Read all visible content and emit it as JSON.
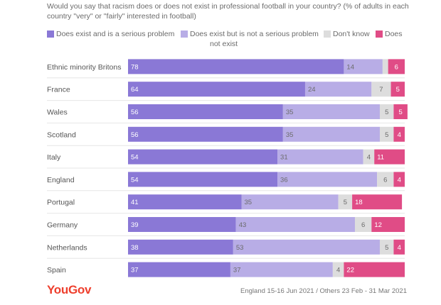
{
  "title": "Would you say that racism does or does not exist in professional football in your country? (% of adults in each country \"very\" or \"fairly\" interested in football)",
  "legend": [
    {
      "label": "Does exist and is a serious problem",
      "color": "#8a78d6"
    },
    {
      "label": "Does exist but is not a serious problem",
      "color": "#b8ade6"
    },
    {
      "label": "Don't know",
      "color": "#dddddd"
    },
    {
      "label": "Does",
      "label2": "not exist",
      "color": "#e04c86"
    }
  ],
  "footer": {
    "logo": "YouGov",
    "source": "England 15-16 Jun 2021 / Others 23 Feb - 31 Mar 2021"
  },
  "chart_data": {
    "type": "bar",
    "orientation": "horizontal",
    "stacked": true,
    "title": "Would you say that racism does or does not exist in professional football in your country?",
    "categories": [
      "Ethnic minority Britons",
      "France",
      "Wales",
      "Scotland",
      "Italy",
      "England",
      "Portugal",
      "Germany",
      "Netherlands",
      "Spain"
    ],
    "series": [
      {
        "name": "Does exist and is a serious problem",
        "color": "#8a78d6",
        "label_color": "#ffffff",
        "values": [
          78,
          64,
          56,
          56,
          54,
          54,
          41,
          39,
          38,
          37
        ]
      },
      {
        "name": "Does exist but is not a serious problem",
        "color": "#b8ade6",
        "label_color": "#6b6b6b",
        "values": [
          14,
          24,
          35,
          35,
          31,
          36,
          35,
          43,
          53,
          37
        ]
      },
      {
        "name": "Don't know",
        "color": "#dddddd",
        "label_color": "#6b6b6b",
        "values": [
          2,
          7,
          5,
          5,
          4,
          6,
          5,
          6,
          5,
          4
        ]
      },
      {
        "name": "Does not exist",
        "color": "#e04c86",
        "label_color": "#ffffff",
        "values": [
          6,
          5,
          5,
          4,
          11,
          4,
          18,
          12,
          4,
          22
        ]
      }
    ],
    "labels": [
      [
        "78",
        "14",
        "",
        "6"
      ],
      [
        "64",
        "24",
        "7",
        "5"
      ],
      [
        "56",
        "35",
        "5",
        "5"
      ],
      [
        "56",
        "35",
        "5",
        "4"
      ],
      [
        "54",
        "31",
        "4",
        "11"
      ],
      [
        "54",
        "36",
        "6",
        "4"
      ],
      [
        "41",
        "35",
        "5",
        "18"
      ],
      [
        "39",
        "43",
        "6",
        "12"
      ],
      [
        "38",
        "53",
        "5",
        "4"
      ],
      [
        "37",
        "37",
        "4",
        "22"
      ]
    ],
    "xlim": [
      0,
      100
    ],
    "grid": false,
    "legend_position": "top"
  }
}
